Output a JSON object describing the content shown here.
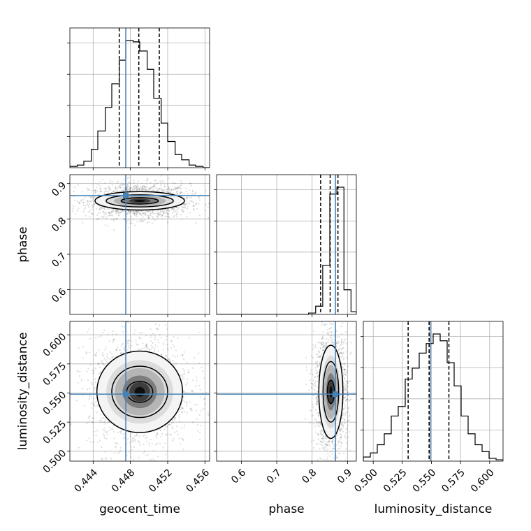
{
  "chart_data": {
    "type": "corner",
    "truth_color": "#4682b4",
    "parameters": [
      {
        "name": "geocent_time",
        "label": "geocent_time",
        "range": [
          0.4415,
          0.4565
        ],
        "ticks": [
          "0.444",
          "0.448",
          "0.452",
          "0.456"
        ],
        "truth": 0.4475,
        "quantiles": [
          0.4468,
          0.4489,
          0.4511
        ]
      },
      {
        "name": "phase",
        "label": "phase",
        "range": [
          0.53,
          0.925
        ],
        "ticks": [
          "0.6",
          "0.7",
          "0.8",
          "0.9"
        ],
        "truth": 0.866,
        "quantiles": [
          0.824,
          0.851,
          0.873
        ]
      },
      {
        "name": "luminosity_distance",
        "label": "luminosity_distance",
        "range": [
          0.4915,
          0.6115
        ],
        "ticks": [
          "0.500",
          "0.525",
          "0.550",
          "0.575",
          "0.600"
        ],
        "truth": 0.549,
        "quantiles": [
          0.53,
          0.548,
          0.565
        ]
      }
    ],
    "histograms": {
      "geocent_time": {
        "edges": [
          0.4415,
          0.4423,
          0.443,
          0.4438,
          0.4445,
          0.4453,
          0.446,
          0.4468,
          0.4475,
          0.4483,
          0.449,
          0.4498,
          0.4505,
          0.4513,
          0.452,
          0.4528,
          0.4535,
          0.4543,
          0.455,
          0.4558,
          0.4565
        ],
        "counts": [
          1,
          2,
          5,
          14,
          28,
          46,
          64,
          82,
          97,
          96,
          89,
          75,
          53,
          34,
          20,
          10,
          6,
          2,
          1,
          0
        ]
      },
      "phase": {
        "edges": [
          0.53,
          0.55,
          0.57,
          0.59,
          0.61,
          0.63,
          0.65,
          0.67,
          0.69,
          0.71,
          0.73,
          0.75,
          0.77,
          0.79,
          0.81,
          0.83,
          0.85,
          0.87,
          0.89,
          0.91,
          0.925
        ],
        "counts": [
          0,
          0,
          0,
          0,
          0,
          0,
          0,
          0,
          0,
          0,
          0,
          0,
          0,
          1,
          6,
          36,
          88,
          93,
          18,
          2
        ]
      },
      "luminosity_distance": {
        "edges": [
          0.4915,
          0.4975,
          0.5035,
          0.5095,
          0.5155,
          0.5215,
          0.5275,
          0.5335,
          0.5395,
          0.5455,
          0.5515,
          0.5575,
          0.5635,
          0.5695,
          0.5755,
          0.5815,
          0.5875,
          0.5935,
          0.5995,
          0.6055,
          0.6115
        ],
        "counts": [
          3,
          6,
          12,
          20,
          33,
          40,
          60,
          68,
          79,
          86,
          93,
          88,
          72,
          55,
          33,
          20,
          12,
          7,
          2,
          1
        ]
      }
    },
    "joints": [
      {
        "x": "geocent_time",
        "y": "phase",
        "mean": [
          0.449,
          0.851
        ],
        "sd": [
          0.002,
          0.018
        ],
        "contours": [
          [
            0.002,
            0.009
          ],
          [
            0.0036,
            0.017
          ],
          [
            0.0048,
            0.026
          ]
        ]
      },
      {
        "x": "geocent_time",
        "y": "luminosity_distance",
        "mean": [
          0.449,
          0.551
        ],
        "sd": [
          0.002,
          0.018
        ],
        "contours": [
          [
            0.0014,
            0.009
          ],
          [
            0.003,
            0.022
          ],
          [
            0.0046,
            0.035
          ]
        ]
      },
      {
        "x": "phase",
        "y": "luminosity_distance",
        "mean": [
          0.853,
          0.551
        ],
        "sd": [
          0.017,
          0.018
        ],
        "contours": [
          [
            0.01,
            0.01
          ],
          [
            0.022,
            0.026
          ],
          [
            0.034,
            0.04
          ]
        ]
      }
    ]
  }
}
